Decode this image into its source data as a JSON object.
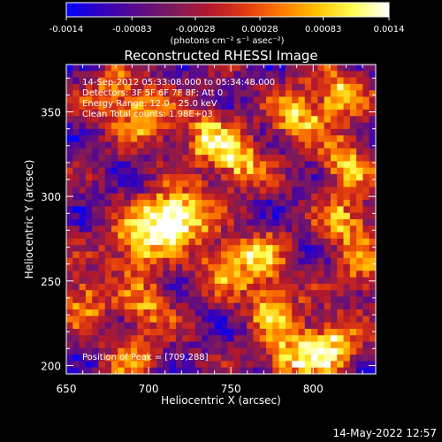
{
  "colorbar": {
    "tick_labels": [
      "-0.0014",
      "-0.00083",
      "-0.00028",
      "0.00028",
      "0.00083",
      "0.0014"
    ],
    "tick_values": [
      -0.0014,
      -0.00083,
      -0.00028,
      0.00028,
      0.00083,
      0.0014
    ],
    "range": [
      -0.0014,
      0.0014
    ],
    "units_label": "(photons cm⁻² s⁻¹ asec⁻²)",
    "stops": [
      "#0000ff",
      "#3300bb",
      "#5a0a8a",
      "#7f1a5a",
      "#b2182b",
      "#e03a10",
      "#ff7a00",
      "#ffc200",
      "#ffff55",
      "#ffffff"
    ]
  },
  "chart_data": {
    "type": "heatmap",
    "title": "Reconstructed RHESSI Image",
    "xlabel": "Heliocentric X (arcsec)",
    "ylabel": "Heliocentric Y (arcsec)",
    "xlim": [
      650,
      838
    ],
    "ylim": [
      195,
      378
    ],
    "x_ticks": [
      650,
      700,
      750,
      800
    ],
    "y_ticks": [
      200,
      250,
      300,
      350
    ],
    "x_tick_labels": [
      "650",
      "700",
      "750",
      "800"
    ],
    "y_tick_labels": [
      "200",
      "250",
      "300",
      "350"
    ],
    "peak": [
      709,
      288
    ],
    "hotspots": [
      {
        "x": 709,
        "y": 285,
        "v": 0.00135
      },
      {
        "x": 725,
        "y": 290,
        "v": 0.0008
      },
      {
        "x": 690,
        "y": 270,
        "v": 0.0008
      },
      {
        "x": 810,
        "y": 212,
        "v": 0.00125
      },
      {
        "x": 785,
        "y": 205,
        "v": 0.0009
      },
      {
        "x": 755,
        "y": 320,
        "v": 0.0009
      },
      {
        "x": 735,
        "y": 335,
        "v": 0.0008
      },
      {
        "x": 790,
        "y": 348,
        "v": 0.0009
      },
      {
        "x": 815,
        "y": 360,
        "v": 0.0008
      },
      {
        "x": 680,
        "y": 360,
        "v": 0.0007
      },
      {
        "x": 700,
        "y": 345,
        "v": 0.0006
      },
      {
        "x": 768,
        "y": 262,
        "v": 0.0007
      },
      {
        "x": 775,
        "y": 235,
        "v": 0.0007
      },
      {
        "x": 820,
        "y": 285,
        "v": 0.0008
      },
      {
        "x": 830,
        "y": 255,
        "v": 0.0005
      },
      {
        "x": 820,
        "y": 320,
        "v": 0.0008
      },
      {
        "x": 660,
        "y": 240,
        "v": 0.0006
      },
      {
        "x": 700,
        "y": 235,
        "v": 0.0005
      },
      {
        "x": 745,
        "y": 260,
        "v": 0.0005
      },
      {
        "x": 690,
        "y": 205,
        "v": 0.0004
      }
    ],
    "annotations": [
      "14-Sep-2012 05:33:08.000 to 05:34:48.000",
      "Detectors: 3F 5F 6F 7F 8F; Att 0",
      "Energy Range: 12.0 - 25.0 keV",
      "Clean    Total counts: 1.98E+03"
    ],
    "peak_label": "Position of Peak = [709,288]"
  },
  "timestamp": "14-May-2022 12:57"
}
